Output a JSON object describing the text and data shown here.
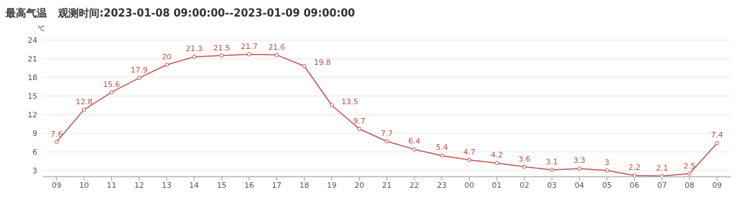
{
  "chart_data": {
    "type": "line",
    "title": "最高气温",
    "subtitle": "观测时间:2023-01-08 09:00:00--2023-01-09 09:00:00",
    "ylabel": "℃",
    "categories": [
      "09",
      "10",
      "11",
      "12",
      "13",
      "14",
      "15",
      "16",
      "17",
      "18",
      "19",
      "20",
      "21",
      "22",
      "23",
      "00",
      "01",
      "02",
      "03",
      "04",
      "05",
      "06",
      "07",
      "08",
      "09"
    ],
    "series": [
      {
        "color": "#c0504d",
        "values": [
          7.6,
          12.8,
          15.6,
          17.9,
          20,
          21.3,
          21.5,
          21.7,
          21.6,
          19.8,
          13.5,
          9.7,
          7.7,
          6.4,
          5.4,
          4.7,
          4.2,
          3.6,
          3.1,
          3.3,
          3,
          2.2,
          2.1,
          2.5,
          7.4
        ]
      }
    ],
    "ylim": [
      2,
      24
    ],
    "yticks": [
      3,
      6,
      9,
      12,
      15,
      18,
      21,
      24
    ],
    "grid": "y",
    "marker": "circle",
    "line_style": "solid",
    "data_labels": true
  }
}
